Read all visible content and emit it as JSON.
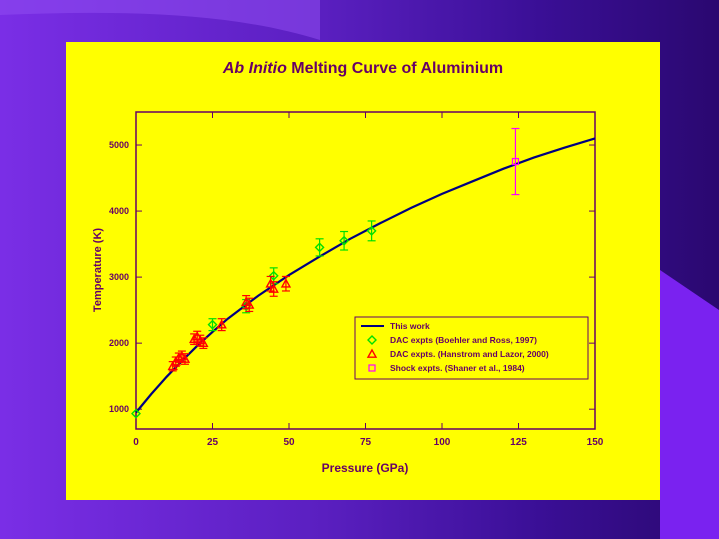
{
  "chart_data": {
    "type": "scatter",
    "title_italic": "Ab Initio",
    "title_rest": " Melting Curve of Aluminium",
    "xlabel": "Pressure (GPa)",
    "ylabel": "Temperature (K)",
    "xlim": [
      0,
      150
    ],
    "ylim": [
      700,
      5500
    ],
    "xticks": [
      0,
      25,
      50,
      75,
      100,
      125,
      150
    ],
    "yticks": [
      1000,
      2000,
      3000,
      4000,
      5000
    ],
    "legend_position": "bottom-right",
    "series": [
      {
        "name": "This work",
        "kind": "line",
        "color": "#000080",
        "x": [
          0,
          5,
          10,
          15,
          20,
          25,
          30,
          40,
          50,
          60,
          70,
          80,
          90,
          100,
          110,
          120,
          130,
          140,
          150
        ],
        "y": [
          950,
          1230,
          1490,
          1730,
          1960,
          2170,
          2370,
          2720,
          3030,
          3310,
          3580,
          3820,
          4050,
          4260,
          4450,
          4640,
          4810,
          4960,
          5100
        ]
      },
      {
        "name": "DAC expts (Boehler and Ross, 1997)",
        "kind": "diamond",
        "color": "#00e000",
        "points": [
          {
            "x": 0,
            "y": 933,
            "err": 0
          },
          {
            "x": 25,
            "y": 2280,
            "err": 90
          },
          {
            "x": 36,
            "y": 2560,
            "err": 100
          },
          {
            "x": 45,
            "y": 3020,
            "err": 120
          },
          {
            "x": 60,
            "y": 3450,
            "err": 130
          },
          {
            "x": 68,
            "y": 3550,
            "err": 140
          },
          {
            "x": 77,
            "y": 3700,
            "err": 150
          }
        ]
      },
      {
        "name": "DAC expts. (Hanstrom and Lazor, 2000)",
        "kind": "triangle",
        "color": "#ff0000",
        "points": [
          {
            "x": 12,
            "y": 1650,
            "err": 70
          },
          {
            "x": 13,
            "y": 1720,
            "err": 70
          },
          {
            "x": 14,
            "y": 1780,
            "err": 70
          },
          {
            "x": 15,
            "y": 1800,
            "err": 80
          },
          {
            "x": 16,
            "y": 1760,
            "err": 80
          },
          {
            "x": 19,
            "y": 2060,
            "err": 80
          },
          {
            "x": 20,
            "y": 2100,
            "err": 80
          },
          {
            "x": 21,
            "y": 2040,
            "err": 80
          },
          {
            "x": 22,
            "y": 2000,
            "err": 80
          },
          {
            "x": 28,
            "y": 2280,
            "err": 90
          },
          {
            "x": 36,
            "y": 2620,
            "err": 100
          },
          {
            "x": 37,
            "y": 2580,
            "err": 100
          },
          {
            "x": 44,
            "y": 2900,
            "err": 110
          },
          {
            "x": 45,
            "y": 2820,
            "err": 110
          },
          {
            "x": 49,
            "y": 2900,
            "err": 110
          }
        ]
      },
      {
        "name": "Shock expts. (Shaner et al., 1984)",
        "kind": "square",
        "color": "#ff00ff",
        "points": [
          {
            "x": 124,
            "y": 4750,
            "err": 500
          }
        ]
      }
    ]
  }
}
